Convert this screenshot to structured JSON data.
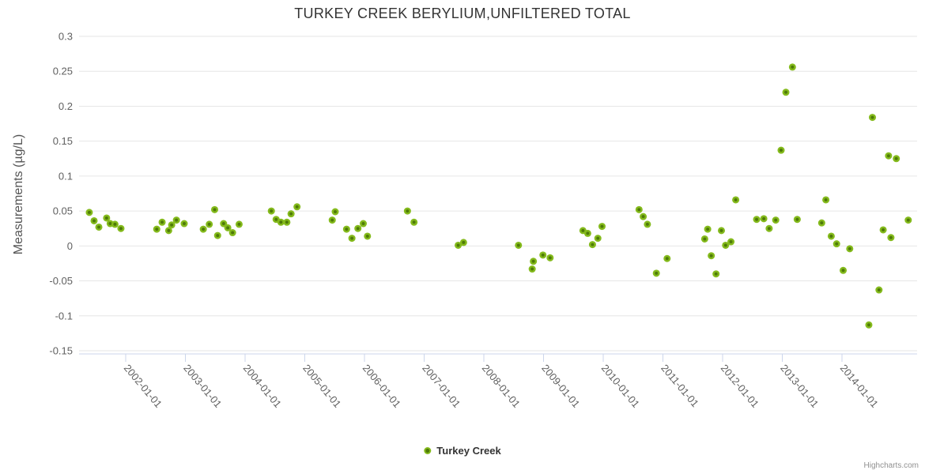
{
  "title": "TURKEY CREEK BERYLIUM,UNFILTERED TOTAL",
  "legend": {
    "label": "Turkey Creek"
  },
  "credits": {
    "label": "Highcharts.com"
  },
  "colors": {
    "marker_fill": "#84ba1c",
    "marker_center": "#4e7a08",
    "grid_line": "#e6e6e6",
    "axis_line": "#ccd6eb",
    "tick_label": "#606060",
    "title_text": "#333333",
    "legend_text": "#333333",
    "credits_text": "#909090"
  },
  "chart_data": {
    "type": "scatter",
    "title": "TURKEY CREEK BERYLIUM,UNFILTERED TOTAL",
    "xlabel": "",
    "ylabel": "Measurements (µg/L)",
    "ylim": [
      -0.155,
      0.3
    ],
    "xlim_years": [
      2001.22,
      2015.26
    ],
    "grid": "horizontal-only",
    "legend_position": "bottom-center",
    "y_tick_values": [
      0.3,
      0.25,
      0.2,
      0.15,
      0.1,
      0.05,
      0,
      -0.05,
      -0.1,
      -0.15
    ],
    "y_tick_labels": [
      "0.3",
      "0.25",
      "0.2",
      "0.15",
      "0.1",
      "0.05",
      "0",
      "-0.05",
      "-0.1",
      "-0.15"
    ],
    "x_tick_years": [
      2002,
      2003,
      2004,
      2005,
      2006,
      2007,
      2008,
      2009,
      2010,
      2011,
      2012,
      2013,
      2014
    ],
    "x_tick_labels": [
      "2002-01-01",
      "2003-01-01",
      "2004-01-01",
      "2005-01-01",
      "2006-01-01",
      "2007-01-01",
      "2008-01-01",
      "2009-01-01",
      "2010-01-01",
      "2011-01-01",
      "2012-01-01",
      "2013-01-01",
      "2014-01-01"
    ],
    "series": [
      {
        "name": "Turkey Creek",
        "color": "#84ba1c",
        "points": [
          [
            2001.39,
            0.048
          ],
          [
            2001.47,
            0.036
          ],
          [
            2001.55,
            0.027
          ],
          [
            2001.68,
            0.04
          ],
          [
            2001.74,
            0.032
          ],
          [
            2001.82,
            0.031
          ],
          [
            2001.92,
            0.025
          ],
          [
            2002.52,
            0.024
          ],
          [
            2002.61,
            0.034
          ],
          [
            2002.72,
            0.022
          ],
          [
            2002.77,
            0.03
          ],
          [
            2002.85,
            0.037
          ],
          [
            2002.98,
            0.032
          ],
          [
            2003.3,
            0.024
          ],
          [
            2003.4,
            0.031
          ],
          [
            2003.49,
            0.052
          ],
          [
            2003.54,
            0.015
          ],
          [
            2003.64,
            0.032
          ],
          [
            2003.71,
            0.026
          ],
          [
            2003.79,
            0.019
          ],
          [
            2003.9,
            0.031
          ],
          [
            2004.44,
            0.05
          ],
          [
            2004.52,
            0.038
          ],
          [
            2004.6,
            0.034
          ],
          [
            2004.7,
            0.034
          ],
          [
            2004.77,
            0.046
          ],
          [
            2004.87,
            0.056
          ],
          [
            2005.46,
            0.037
          ],
          [
            2005.51,
            0.049
          ],
          [
            2005.7,
            0.024
          ],
          [
            2005.79,
            0.011
          ],
          [
            2005.89,
            0.025
          ],
          [
            2005.98,
            0.032
          ],
          [
            2006.05,
            0.014
          ],
          [
            2006.72,
            0.05
          ],
          [
            2006.83,
            0.034
          ],
          [
            2007.57,
            0.001
          ],
          [
            2007.66,
            0.005
          ],
          [
            2008.58,
            0.001
          ],
          [
            2008.81,
            -0.033
          ],
          [
            2008.83,
            -0.022
          ],
          [
            2008.99,
            -0.013
          ],
          [
            2009.11,
            -0.017
          ],
          [
            2009.66,
            0.022
          ],
          [
            2009.74,
            0.018
          ],
          [
            2009.82,
            0.002
          ],
          [
            2009.91,
            0.011
          ],
          [
            2009.98,
            0.028
          ],
          [
            2010.6,
            0.052
          ],
          [
            2010.67,
            0.042
          ],
          [
            2010.74,
            0.031
          ],
          [
            2010.89,
            -0.039
          ],
          [
            2011.07,
            -0.018
          ],
          [
            2011.7,
            0.01
          ],
          [
            2011.75,
            0.024
          ],
          [
            2011.81,
            -0.014
          ],
          [
            2011.89,
            -0.04
          ],
          [
            2011.98,
            0.022
          ],
          [
            2012.05,
            0.001
          ],
          [
            2012.14,
            0.006
          ],
          [
            2012.22,
            0.066
          ],
          [
            2012.57,
            0.038
          ],
          [
            2012.69,
            0.039
          ],
          [
            2012.78,
            0.025
          ],
          [
            2012.89,
            0.037
          ],
          [
            2012.98,
            0.137
          ],
          [
            2013.06,
            0.22
          ],
          [
            2013.17,
            0.256
          ],
          [
            2013.25,
            0.038
          ],
          [
            2013.66,
            0.033
          ],
          [
            2013.73,
            0.066
          ],
          [
            2013.82,
            0.014
          ],
          [
            2013.91,
            0.003
          ],
          [
            2014.02,
            -0.035
          ],
          [
            2014.13,
            -0.004
          ],
          [
            2014.45,
            -0.113
          ],
          [
            2014.51,
            0.184
          ],
          [
            2014.62,
            -0.063
          ],
          [
            2014.69,
            0.023
          ],
          [
            2014.78,
            0.129
          ],
          [
            2014.82,
            0.012
          ],
          [
            2014.91,
            0.125
          ],
          [
            2015.11,
            0.037
          ]
        ]
      }
    ]
  }
}
